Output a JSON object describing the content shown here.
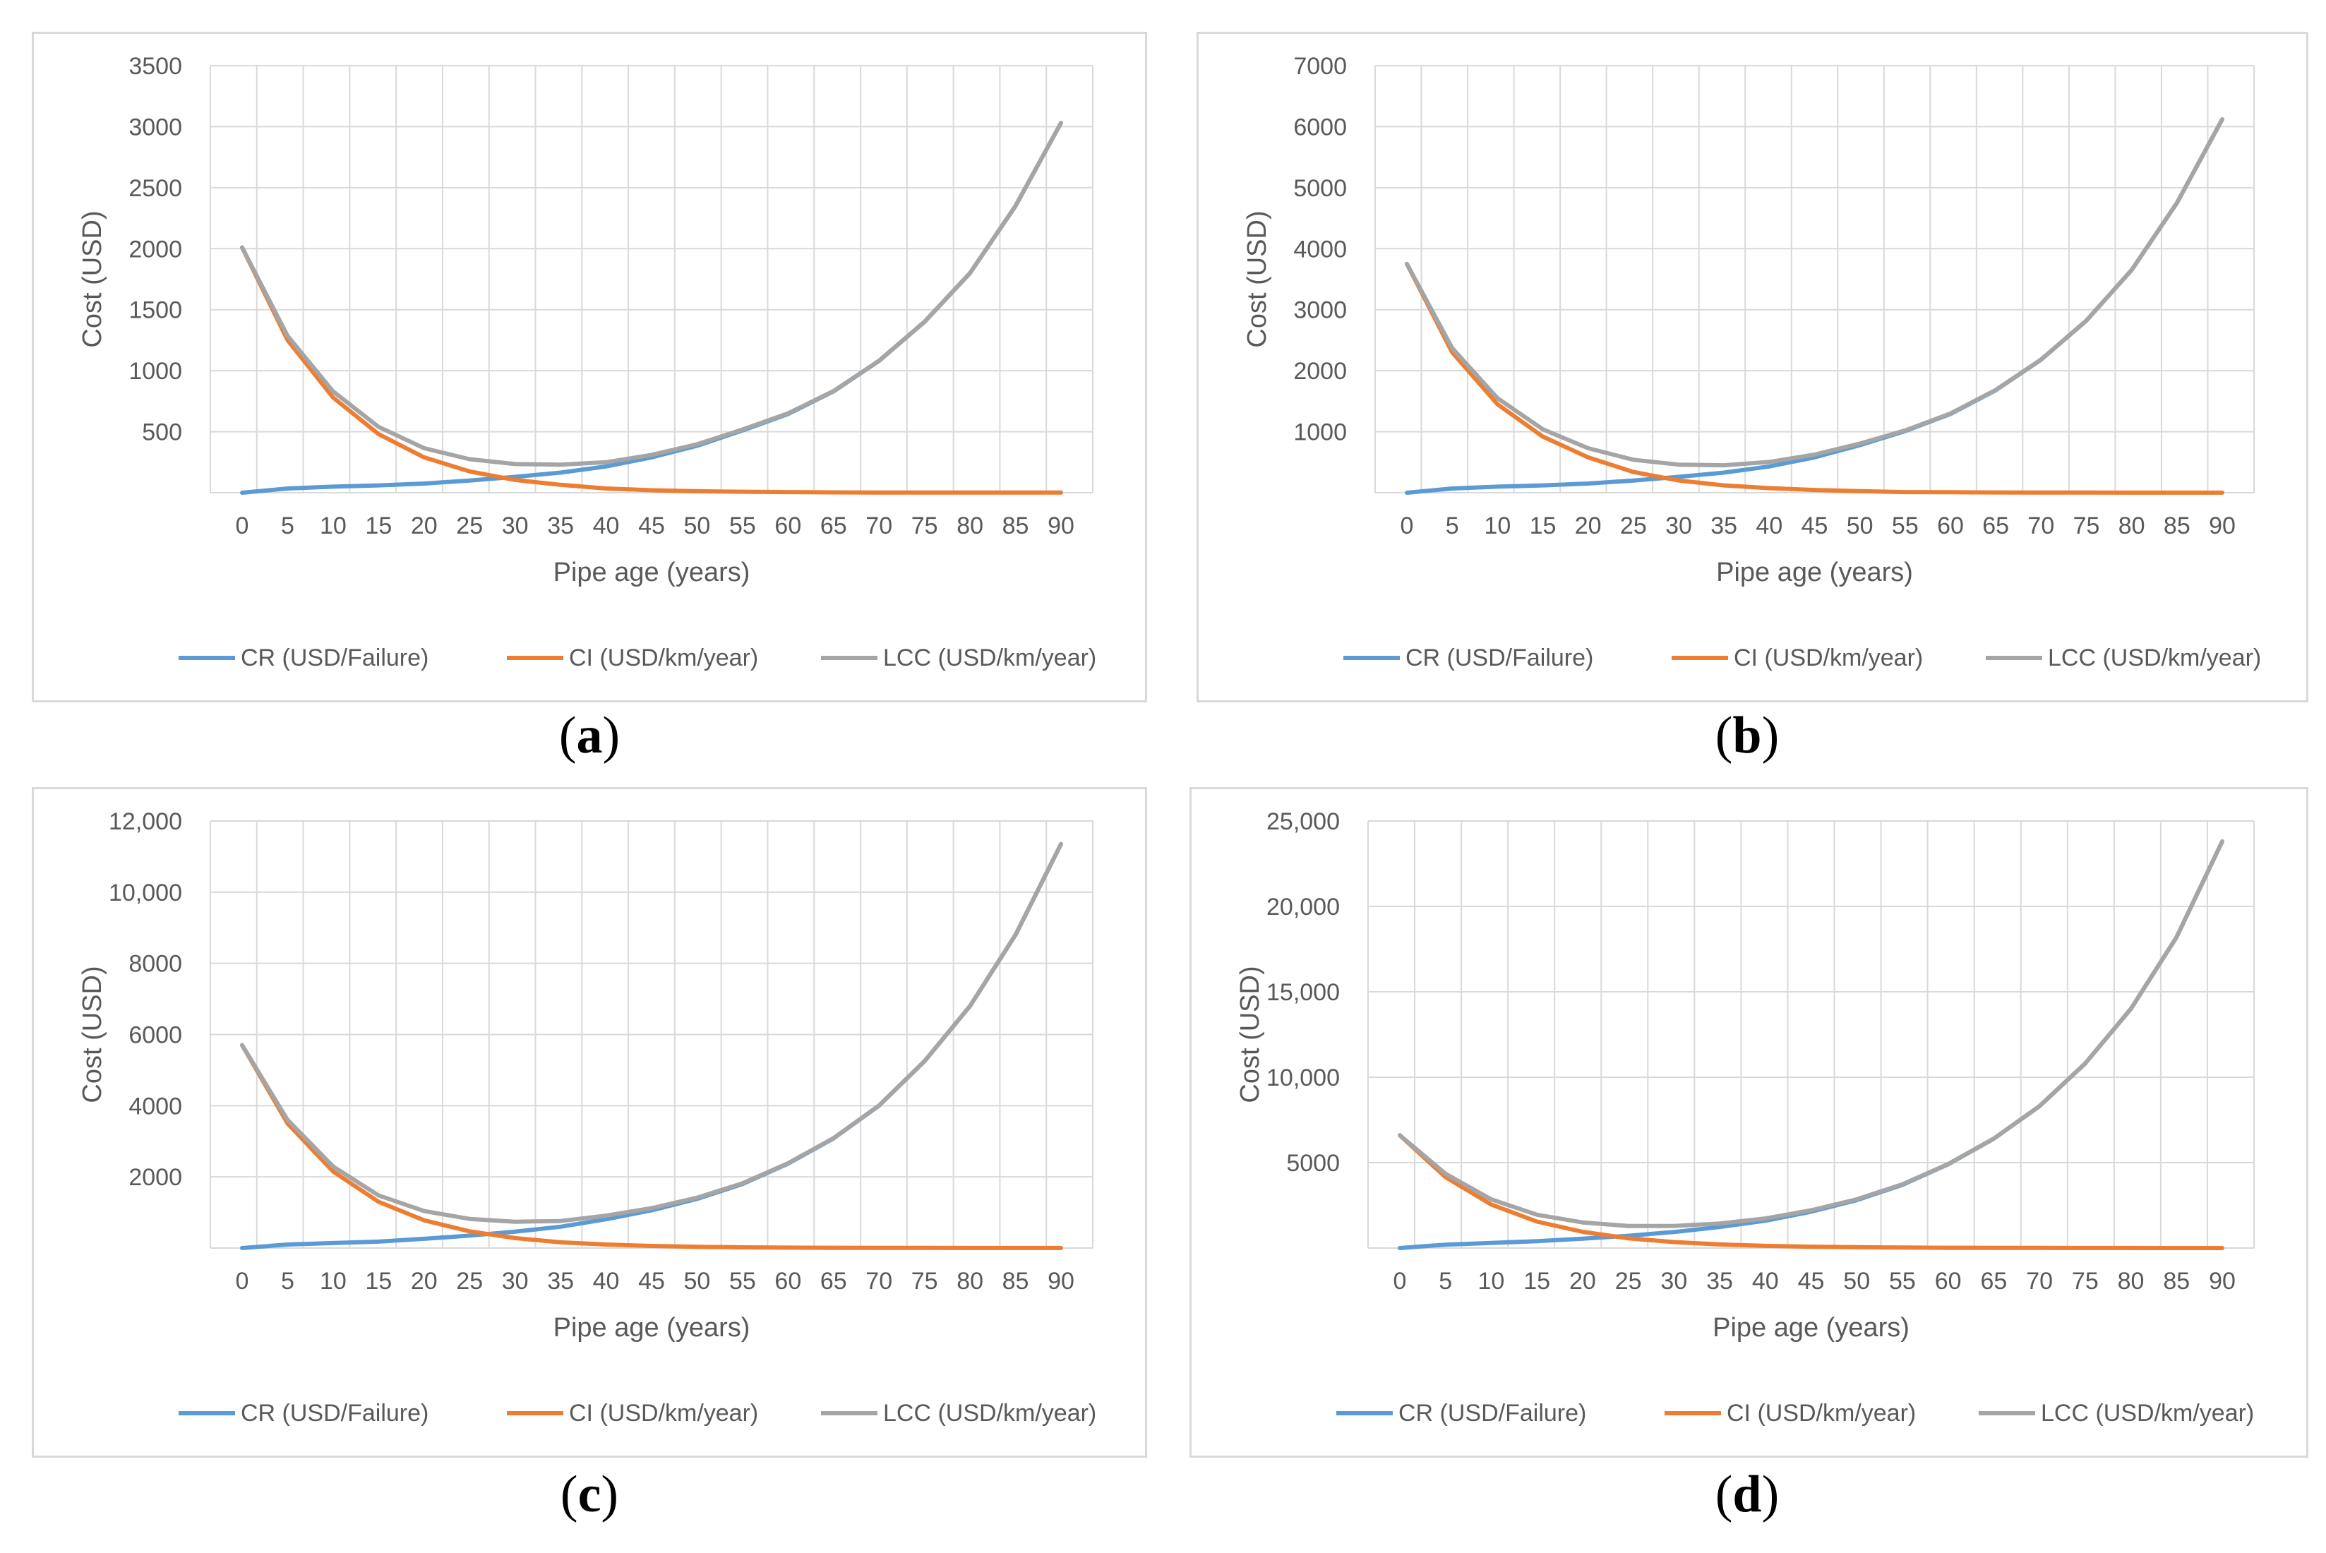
{
  "colors": {
    "CR": "#5B9BD5",
    "CI": "#ED7D31",
    "LCC": "#A5A5A5",
    "grid": "#d9d9d9",
    "text": "#595959"
  },
  "chart_data": [
    {
      "type": "line",
      "caption_letter": "a",
      "x": [
        0,
        5,
        10,
        15,
        20,
        25,
        30,
        35,
        40,
        45,
        50,
        55,
        60,
        65,
        70,
        75,
        80,
        85,
        90
      ],
      "xlabel": "Pipe age (years)",
      "ylabel": "Cost (USD)",
      "ylim": [
        0,
        3500
      ],
      "yticks": [
        500,
        1000,
        1500,
        2000,
        2500,
        3000,
        3500
      ],
      "ytick_labels": [
        "500",
        "1000",
        "1500",
        "2000",
        "2500",
        "3000",
        "3500"
      ],
      "series": [
        {
          "name": "CR (USD/Failure)",
          "key": "CR",
          "values": [
            0,
            35,
            50,
            60,
            75,
            100,
            130,
            165,
            215,
            290,
            385,
            510,
            645,
            830,
            1080,
            1400,
            1800,
            2350,
            3030
          ]
        },
        {
          "name": "CI (USD/km/year)",
          "key": "CI",
          "values": [
            2010,
            1250,
            780,
            480,
            290,
            175,
            105,
            65,
            35,
            20,
            12,
            8,
            5,
            3,
            2,
            2,
            1,
            1,
            1
          ]
        },
        {
          "name": "LCC (USD/km/year)",
          "key": "LCC",
          "values": [
            2010,
            1285,
            830,
            540,
            365,
            275,
            235,
            230,
            250,
            310,
            397,
            518,
            650,
            833,
            1082,
            1402,
            1801,
            2351,
            3031
          ]
        }
      ]
    },
    {
      "type": "line",
      "caption_letter": "b",
      "x": [
        0,
        5,
        10,
        15,
        20,
        25,
        30,
        35,
        40,
        45,
        50,
        55,
        60,
        65,
        70,
        75,
        80,
        85,
        90
      ],
      "xlabel": "Pipe age (years)",
      "ylabel": "Cost (USD)",
      "ylim": [
        0,
        7000
      ],
      "yticks": [
        1000,
        2000,
        3000,
        4000,
        5000,
        6000,
        7000
      ],
      "ytick_labels": [
        "1000",
        "2000",
        "3000",
        "4000",
        "5000",
        "6000",
        "7000"
      ],
      "series": [
        {
          "name": "CR (USD/Failure)",
          "key": "CR",
          "values": [
            0,
            70,
            100,
            120,
            150,
            200,
            260,
            330,
            430,
            580,
            780,
            1010,
            1290,
            1680,
            2180,
            2820,
            3650,
            4750,
            6120
          ]
        },
        {
          "name": "CI (USD/km/year)",
          "key": "CI",
          "values": [
            3750,
            2300,
            1450,
            920,
            580,
            340,
            200,
            120,
            75,
            45,
            25,
            10,
            8,
            5,
            3,
            2,
            1,
            1,
            1
          ]
        },
        {
          "name": "LCC (USD/km/year)",
          "key": "LCC",
          "values": [
            3750,
            2370,
            1550,
            1040,
            730,
            540,
            460,
            450,
            505,
            625,
            805,
            1020,
            1298,
            1685,
            2183,
            2822,
            3651,
            4751,
            6121
          ]
        }
      ]
    },
    {
      "type": "line",
      "caption_letter": "c",
      "x": [
        0,
        5,
        10,
        15,
        20,
        25,
        30,
        35,
        40,
        45,
        50,
        55,
        60,
        65,
        70,
        75,
        80,
        85,
        90
      ],
      "xlabel": "Pipe age (years)",
      "ylabel": "Cost (USD)",
      "ylim": [
        0,
        12000
      ],
      "yticks": [
        2000,
        4000,
        6000,
        8000,
        10000,
        12000
      ],
      "ytick_labels": [
        "2000",
        "4000",
        "6000",
        "8000",
        "10,000",
        "12,000"
      ],
      "series": [
        {
          "name": "CR (USD/Failure)",
          "key": "CR",
          "values": [
            0,
            100,
            140,
            180,
            260,
            350,
            460,
            600,
            810,
            1060,
            1380,
            1800,
            2370,
            3080,
            4000,
            5250,
            6800,
            8800,
            11350
          ]
        },
        {
          "name": "CI (USD/km/year)",
          "key": "CI",
          "values": [
            5700,
            3500,
            2150,
            1300,
            780,
            470,
            280,
            160,
            100,
            60,
            35,
            20,
            12,
            8,
            5,
            3,
            2,
            1,
            1
          ]
        },
        {
          "name": "LCC (USD/km/year)",
          "key": "LCC",
          "values": [
            5700,
            3600,
            2290,
            1480,
            1040,
            820,
            740,
            760,
            910,
            1120,
            1415,
            1820,
            2382,
            3088,
            4005,
            5253,
            6802,
            8801,
            11351
          ]
        }
      ]
    },
    {
      "type": "line",
      "caption_letter": "d",
      "x": [
        0,
        5,
        10,
        15,
        20,
        25,
        30,
        35,
        40,
        45,
        50,
        55,
        60,
        65,
        70,
        75,
        80,
        85,
        90
      ],
      "xlabel": "Pipe age (years)",
      "ylabel": "Cost (USD)",
      "ylim": [
        0,
        25000
      ],
      "yticks": [
        5000,
        10000,
        15000,
        20000,
        25000
      ],
      "ytick_labels": [
        "5000",
        "10,000",
        "15,000",
        "20,000",
        "25,000"
      ],
      "series": [
        {
          "name": "CR (USD/Failure)",
          "key": "CR",
          "values": [
            0,
            200,
            300,
            400,
            550,
            720,
            940,
            1230,
            1600,
            2130,
            2800,
            3700,
            4900,
            6400,
            8300,
            10800,
            14000,
            18200,
            23800
          ]
        },
        {
          "name": "CI (USD/km/year)",
          "key": "CI",
          "values": [
            6600,
            4150,
            2550,
            1550,
            950,
            570,
            350,
            210,
            130,
            80,
            50,
            30,
            18,
            11,
            7,
            4,
            3,
            2,
            1
          ]
        },
        {
          "name": "LCC (USD/km/year)",
          "key": "LCC",
          "values": [
            6600,
            4350,
            2850,
            1950,
            1500,
            1290,
            1290,
            1440,
            1730,
            2210,
            2850,
            3730,
            4918,
            6411,
            8307,
            10804,
            14003,
            18202,
            23801
          ]
        }
      ]
    }
  ]
}
